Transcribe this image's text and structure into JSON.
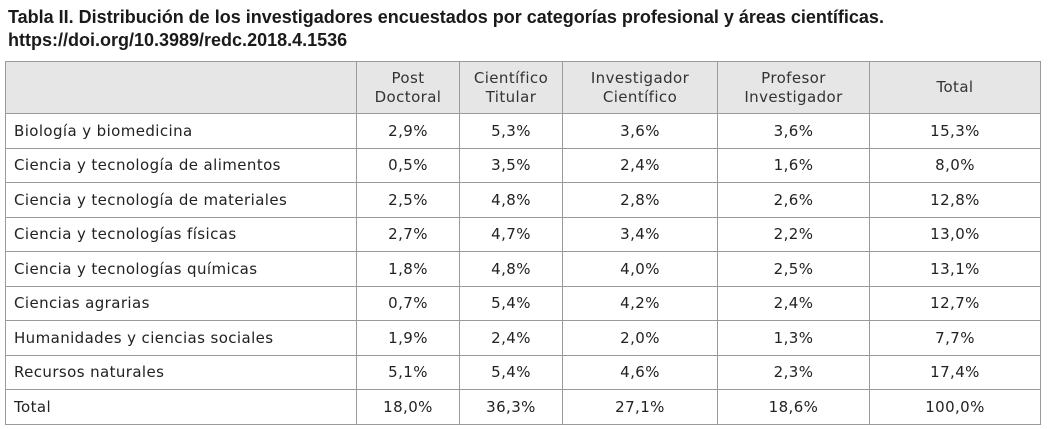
{
  "title": {
    "line1": "Tabla II. Distribución de los investigadores encuestados por categorías profesional y áreas científicas.",
    "line2": "https://doi.org/10.3989/redc.2018.4.1536"
  },
  "table": {
    "headers": [
      {
        "l1": "",
        "l2": ""
      },
      {
        "l1": "Post",
        "l2": "Doctoral"
      },
      {
        "l1": "Científico",
        "l2": "Titular"
      },
      {
        "l1": "Investigador",
        "l2": "Científico"
      },
      {
        "l1": "Profesor",
        "l2": "Investigador"
      },
      {
        "l1": "Total",
        "l2": ""
      }
    ],
    "rows": [
      {
        "area": "Biología y biomedicina",
        "values": [
          "2,9%",
          "5,3%",
          "3,6%",
          "3,6%",
          "15,3%"
        ]
      },
      {
        "area": "Ciencia y tecnología de alimentos",
        "values": [
          "0,5%",
          "3,5%",
          "2,4%",
          "1,6%",
          "8,0%"
        ]
      },
      {
        "area": "Ciencia y tecnología de materiales",
        "values": [
          "2,5%",
          "4,8%",
          "2,8%",
          "2,6%",
          "12,8%"
        ]
      },
      {
        "area": "Ciencia y tecnologías físicas",
        "values": [
          "2,7%",
          "4,7%",
          "3,4%",
          "2,2%",
          "13,0%"
        ]
      },
      {
        "area": "Ciencia y tecnologías químicas",
        "values": [
          "1,8%",
          "4,8%",
          "4,0%",
          "2,5%",
          "13,1%"
        ]
      },
      {
        "area": "Ciencias agrarias",
        "values": [
          "0,7%",
          "5,4%",
          "4,2%",
          "2,4%",
          "12,7%"
        ]
      },
      {
        "area": "Humanidades y ciencias sociales",
        "values": [
          "1,9%",
          "2,4%",
          "2,0%",
          "1,3%",
          "7,7%"
        ]
      },
      {
        "area": "Recursos naturales",
        "values": [
          "5,1%",
          "5,4%",
          "4,6%",
          "2,3%",
          "17,4%"
        ]
      },
      {
        "area": "Total",
        "values": [
          "18,0%",
          "36,3%",
          "27,1%",
          "18,6%",
          "100,0%"
        ]
      }
    ]
  }
}
